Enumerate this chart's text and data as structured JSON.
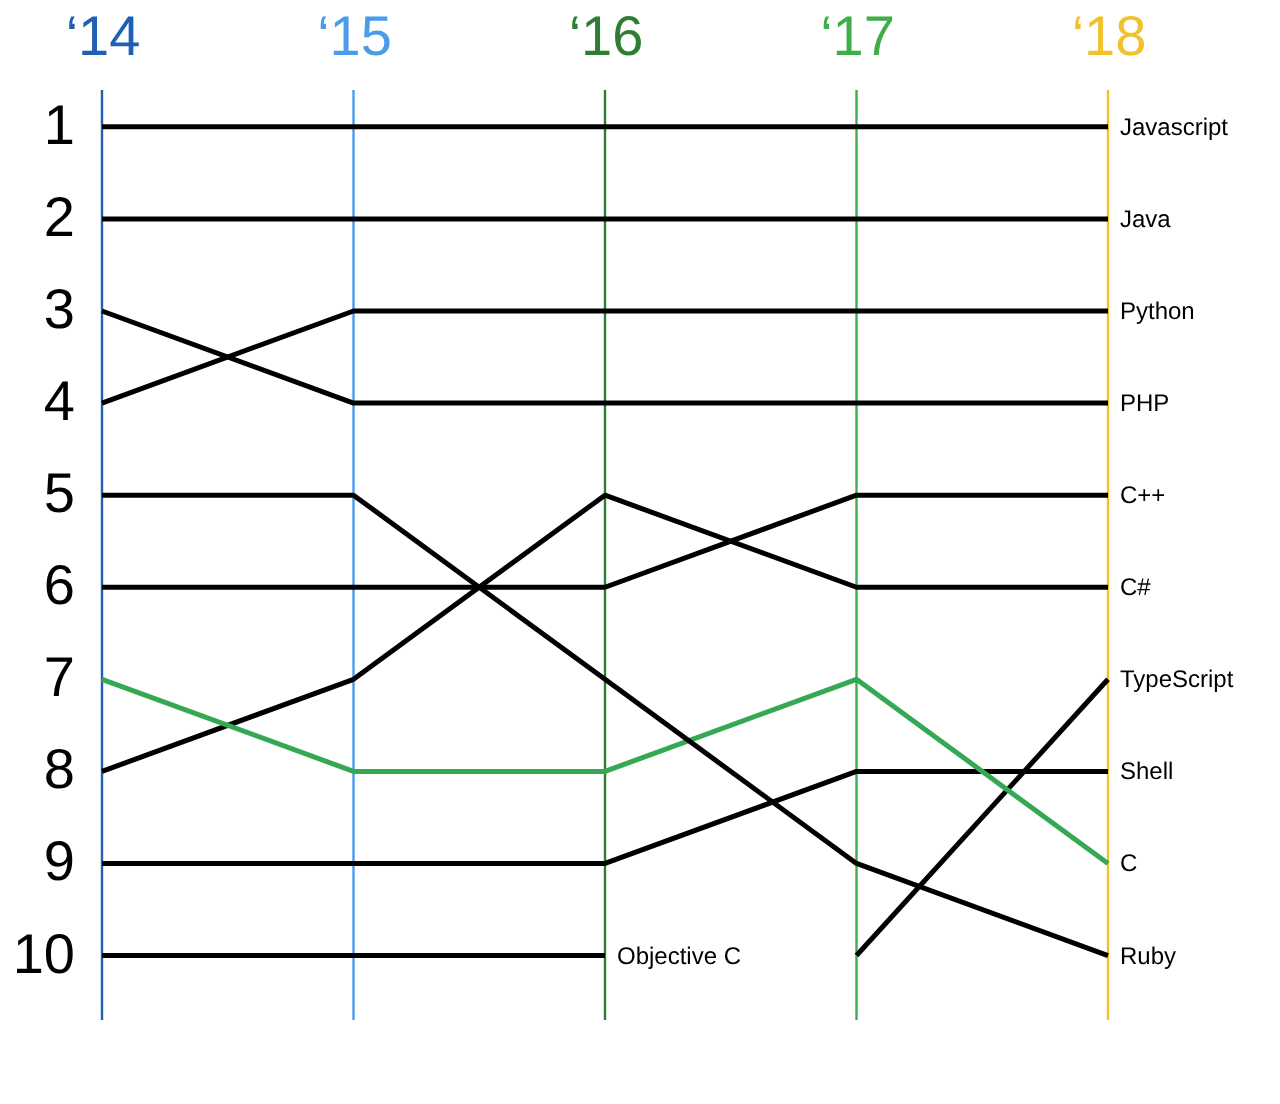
{
  "chart_data": {
    "type": "line",
    "categories": [
      "‘14",
      "‘15",
      "‘16",
      "‘17",
      "‘18"
    ],
    "ylim": [
      10.7,
      0.6
    ],
    "yticks": [
      1,
      2,
      3,
      4,
      5,
      6,
      7,
      8,
      9,
      10
    ],
    "grid": false,
    "legend": false,
    "marker": "none",
    "line_style": "solid",
    "ref_lines": [
      {
        "axis": "x",
        "value": "‘14",
        "label": null,
        "color": "#1f5fb4"
      },
      {
        "axis": "x",
        "value": "‘15",
        "label": null,
        "color": "#4a9be8"
      },
      {
        "axis": "x",
        "value": "‘16",
        "label": null,
        "color": "#2e7d32"
      },
      {
        "axis": "x",
        "value": "‘17",
        "label": null,
        "color": "#3fae49"
      },
      {
        "axis": "x",
        "value": "‘18",
        "label": null,
        "color": "#f2c12e"
      }
    ],
    "series": [
      {
        "name": "Javascript",
        "color": "#000000",
        "values": [
          1,
          1,
          1,
          1,
          1
        ]
      },
      {
        "name": "Java",
        "color": "#000000",
        "values": [
          2,
          2,
          2,
          2,
          2
        ]
      },
      {
        "name": "Python",
        "color": "#000000",
        "values": [
          4,
          3,
          3,
          3,
          3
        ]
      },
      {
        "name": "PHP",
        "color": "#000000",
        "values": [
          3,
          4,
          4,
          4,
          4
        ]
      },
      {
        "name": "C++",
        "color": "#000000",
        "values": [
          6,
          6,
          6,
          5,
          5
        ]
      },
      {
        "name": "C#",
        "color": "#000000",
        "values": [
          8,
          7,
          5,
          6,
          6
        ]
      },
      {
        "name": "TypeScript",
        "color": "#000000",
        "values": [
          null,
          null,
          null,
          10,
          7
        ]
      },
      {
        "name": "Shell",
        "color": "#000000",
        "values": [
          9,
          9,
          9,
          8,
          8
        ]
      },
      {
        "name": "C",
        "color": "#34a853",
        "values": [
          7,
          8,
          8,
          7,
          9
        ]
      },
      {
        "name": "Ruby",
        "color": "#000000",
        "values": [
          5,
          5,
          7,
          9,
          10
        ]
      },
      {
        "name": "Objective C",
        "color": "#000000",
        "values": [
          10,
          10,
          10,
          null,
          null
        ]
      }
    ]
  }
}
